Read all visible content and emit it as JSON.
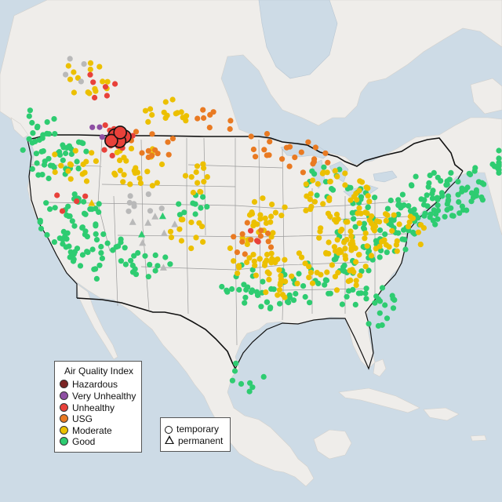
{
  "colors": {
    "ocean": "#cddbe6",
    "land": "#efedea",
    "land_outer": "#e7e4df",
    "border": "#111111",
    "state_line": "#9a9a9a",
    "hazardous": "#7b2424",
    "very_unhealthy": "#8e4fa3",
    "unhealthy": "#e8413a",
    "usg": "#e97a22",
    "moderate": "#ecc000",
    "good": "#2ecc71",
    "inactive": "#b9b9b9"
  },
  "legend": {
    "title": "Air Quality Index",
    "categories": [
      {
        "label": "Hazardous",
        "key": "hazardous"
      },
      {
        "label": "Very Unhealthy",
        "key": "very_unhealthy"
      },
      {
        "label": "Unhealthy",
        "key": "unhealthy"
      },
      {
        "label": "USG",
        "key": "usg"
      },
      {
        "label": "Moderate",
        "key": "moderate"
      },
      {
        "label": "Good",
        "key": "good"
      }
    ]
  },
  "site_legend": {
    "temporary": "temporary",
    "permanent": "permanent"
  },
  "monitor_clusters": {
    "good": [
      {
        "lon": -122.5,
        "lat": 46.5,
        "n": 40
      },
      {
        "lon": -121.5,
        "lat": 38.5,
        "n": 45
      },
      {
        "lon": -118.2,
        "lat": 34.2,
        "n": 35
      },
      {
        "lon": -112.0,
        "lat": 33.4,
        "n": 12
      },
      {
        "lon": -105.0,
        "lat": 39.5,
        "n": 10
      },
      {
        "lon": -74.5,
        "lat": 40.7,
        "n": 45
      },
      {
        "lon": -77.5,
        "lat": 38.8,
        "n": 30
      },
      {
        "lon": -71.5,
        "lat": 42.5,
        "n": 30
      },
      {
        "lon": -84.0,
        "lat": 34.5,
        "n": 30
      },
      {
        "lon": -81.5,
        "lat": 28.0,
        "n": 25
      },
      {
        "lon": -90.5,
        "lat": 30.3,
        "n": 25
      },
      {
        "lon": -96.5,
        "lat": 29.5,
        "n": 18
      },
      {
        "lon": -84.0,
        "lat": 39.8,
        "n": 20
      },
      {
        "lon": -80.0,
        "lat": 36.0,
        "n": 18
      },
      {
        "lon": -88.0,
        "lat": 42.5,
        "n": 12
      },
      {
        "lon": -100.0,
        "lat": 31.0,
        "n": 10
      },
      {
        "lon": -123.0,
        "lat": 50.0,
        "n": 12
      },
      {
        "lon": -66.0,
        "lat": 45.5,
        "n": 10
      },
      {
        "lon": -99.0,
        "lat": 19.5,
        "n": 8
      }
    ],
    "moderate": [
      {
        "lon": -112.0,
        "lat": 44.5,
        "n": 25
      },
      {
        "lon": -117.0,
        "lat": 55.0,
        "n": 15
      },
      {
        "lon": -96.0,
        "lat": 38.0,
        "n": 22
      },
      {
        "lon": -87.0,
        "lat": 40.5,
        "n": 40
      },
      {
        "lon": -84.5,
        "lat": 36.0,
        "n": 40
      },
      {
        "lon": -78.5,
        "lat": 36.5,
        "n": 25
      },
      {
        "lon": -93.5,
        "lat": 31.5,
        "n": 30
      },
      {
        "lon": -86.0,
        "lat": 32.5,
        "n": 28
      },
      {
        "lon": -98.0,
        "lat": 33.5,
        "n": 20
      },
      {
        "lon": -106.0,
        "lat": 36.5,
        "n": 12
      },
      {
        "lon": -104.5,
        "lat": 43.0,
        "n": 12
      },
      {
        "lon": -120.0,
        "lat": 45.0,
        "n": 15
      },
      {
        "lon": -108.0,
        "lat": 50.0,
        "n": 15
      }
    ],
    "usg": [
      {
        "lon": -91.0,
        "lat": 45.0,
        "n": 14
      },
      {
        "lon": -98.0,
        "lat": 35.5,
        "n": 12
      },
      {
        "lon": -110.0,
        "lat": 47.0,
        "n": 12
      },
      {
        "lon": -102.0,
        "lat": 49.5,
        "n": 8
      },
      {
        "lon": -97.0,
        "lat": 46.5,
        "n": 8
      }
    ],
    "unhealthy": [
      {
        "lon": -115.0,
        "lat": 47.5,
        "n": 14
      },
      {
        "lon": -115.5,
        "lat": 54.0,
        "n": 6
      },
      {
        "lon": -121.0,
        "lat": 41.0,
        "n": 4
      },
      {
        "lon": -97.5,
        "lat": 36.5,
        "n": 3
      }
    ],
    "very_unhealthy": [
      {
        "lon": -116.0,
        "lat": 48.5,
        "n": 5
      }
    ],
    "inactive": [
      {
        "lon": -112.0,
        "lat": 40.0,
        "n": 8
      },
      {
        "lon": -118.0,
        "lat": 56.0,
        "n": 4
      }
    ]
  },
  "temporary_hotspots": [
    {
      "lon": -114.5,
      "lat": 48.2,
      "aqi": "unhealthy"
    },
    {
      "lon": -113.3,
      "lat": 48.0,
      "aqi": "unhealthy"
    },
    {
      "lon": -114.0,
      "lat": 47.5,
      "aqi": "unhealthy"
    },
    {
      "lon": -115.0,
      "lat": 47.6,
      "aqi": "unhealthy"
    },
    {
      "lon": -113.8,
      "lat": 48.5,
      "aqi": "unhealthy"
    }
  ],
  "permanent_sites": [
    {
      "lon": -110.5,
      "lat": 38.5,
      "aqi": "inactive"
    },
    {
      "lon": -109.5,
      "lat": 36.5,
      "aqi": "inactive"
    },
    {
      "lon": -111.5,
      "lat": 37.8,
      "aqi": "inactive"
    },
    {
      "lon": -113.5,
      "lat": 38.0,
      "aqi": "inactive"
    },
    {
      "lon": -112.5,
      "lat": 35.5,
      "aqi": "inactive"
    },
    {
      "lon": -108.0,
      "lat": 37.5,
      "aqi": "inactive"
    },
    {
      "lon": -110.0,
      "lat": 32.5,
      "aqi": "inactive"
    },
    {
      "lon": -118.5,
      "lat": 40.5,
      "aqi": "moderate"
    },
    {
      "lon": -112.5,
      "lat": 36.5,
      "aqi": "good"
    },
    {
      "lon": -109.5,
      "lat": 38.5,
      "aqi": "good"
    }
  ]
}
